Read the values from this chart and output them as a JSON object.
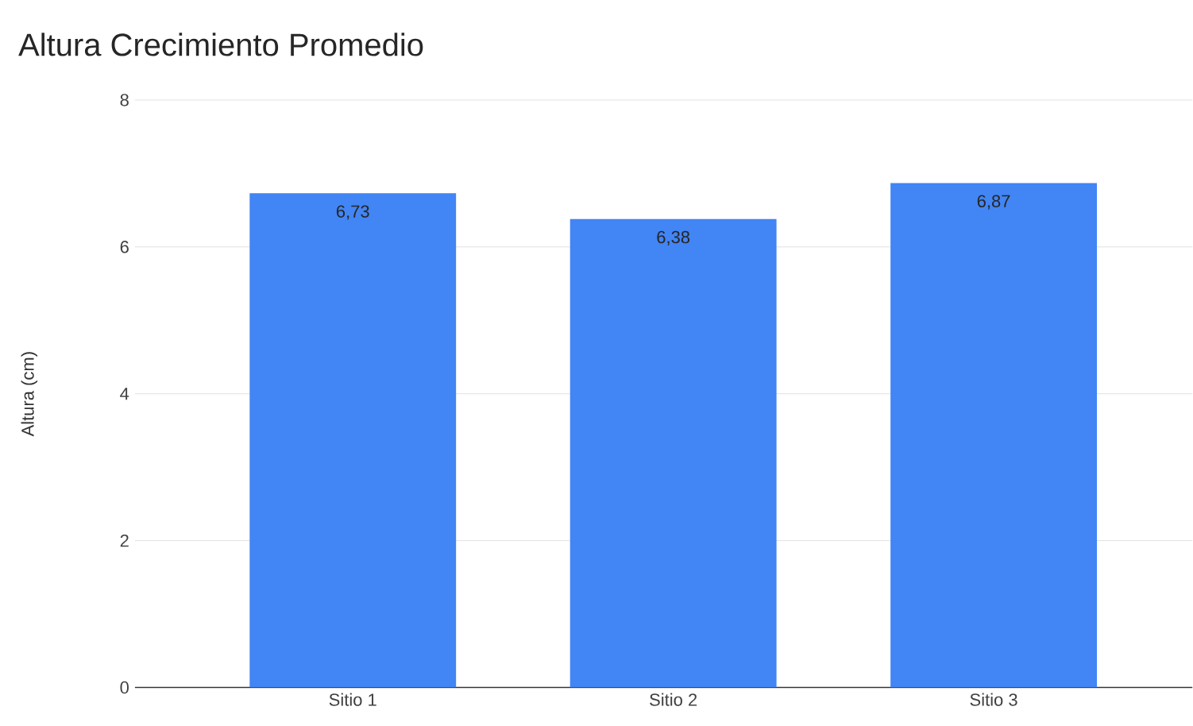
{
  "chart_data": {
    "type": "bar",
    "title": "Altura Crecimiento Promedio",
    "ylabel": "Altura (cm)",
    "categories": [
      "Sitio 1",
      "Sitio 2",
      "Sitio 3"
    ],
    "values": [
      6.73,
      6.38,
      6.87
    ],
    "value_labels": [
      "6,73",
      "6,38",
      "6,87"
    ],
    "color": "#4285f4",
    "ylim": [
      0,
      8
    ],
    "yticks": [
      0,
      2,
      4,
      6,
      8
    ],
    "grid": "y"
  }
}
